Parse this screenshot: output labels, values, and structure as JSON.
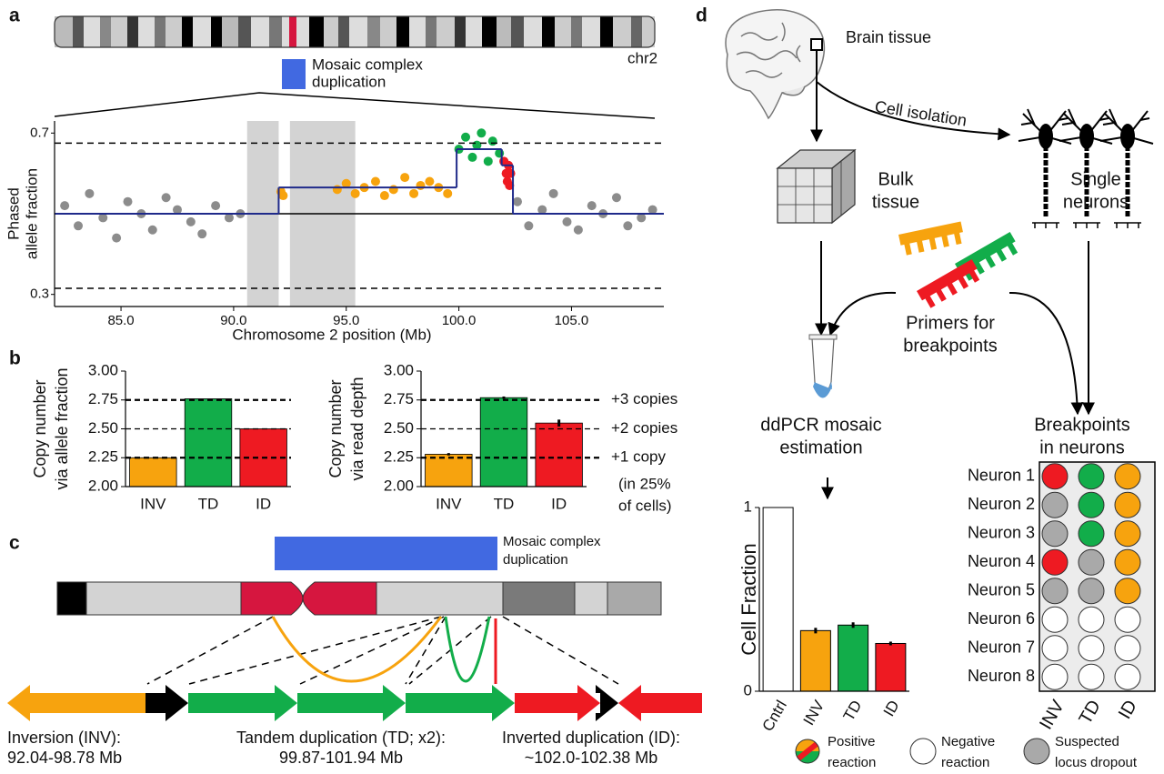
{
  "labels": {
    "a": "a",
    "b": "b",
    "c": "c",
    "d": "d"
  },
  "panel_a": {
    "chromosome": "chr2",
    "legend": [
      "Mosaic complex",
      "duplication"
    ]
  },
  "panel_c": {
    "legend": [
      "Mosaic complex",
      "duplication"
    ],
    "events": [
      {
        "name": "Inversion (INV):",
        "range": "92.04-98.78 Mb"
      },
      {
        "name": "Tandem duplication (TD; x2):",
        "range": "99.87-101.94 Mb"
      },
      {
        "name": "Inverted duplication (ID):",
        "range": "~102.0-102.38 Mb"
      }
    ]
  },
  "panel_d": {
    "brain": "Brain tissue",
    "isolation": "Cell isolation",
    "bulk": [
      "Bulk",
      "tissue"
    ],
    "single": [
      "Single",
      "neurons"
    ],
    "primers": [
      "Primers for",
      "breakpoints"
    ],
    "ddpcr": [
      "ddPCR mosaic",
      "estimation"
    ],
    "breakpoints": [
      "Breakpoints",
      "in neurons"
    ],
    "neurons": {
      "rows": [
        "Neuron 1",
        "Neuron 2",
        "Neuron 3",
        "Neuron 4",
        "Neuron 5",
        "Neuron 6",
        "Neuron 7",
        "Neuron 8"
      ],
      "columns": [
        "INV",
        "TD",
        "ID"
      ],
      "cells": [
        [
          "#ee1a22",
          "#12ad4a",
          "#f7a30e"
        ],
        [
          "#a9a9a9",
          "#12ad4a",
          "#f7a30e"
        ],
        [
          "#a9a9a9",
          "#12ad4a",
          "#f7a30e"
        ],
        [
          "#ee1a22",
          "#a9a9a9",
          "#f7a30e"
        ],
        [
          "#a9a9a9",
          "#a9a9a9",
          "#f7a30e"
        ],
        [
          "#ffffff",
          "#ffffff",
          "#ffffff"
        ],
        [
          "#ffffff",
          "#ffffff",
          "#ffffff"
        ],
        [
          "#ffffff",
          "#ffffff",
          "#ffffff"
        ]
      ]
    },
    "legend": [
      {
        "text": [
          "Positive",
          "reaction"
        ]
      },
      {
        "text": [
          "Negative",
          "reaction"
        ],
        "color": "#ffffff"
      },
      {
        "text": [
          "Suspected",
          "locus dropout"
        ],
        "color": "#a9a9a9"
      }
    ]
  },
  "chart_data": [
    {
      "type": "scatter",
      "ylabel": [
        "Phased",
        "allele fraction"
      ],
      "xlabel": "Chromosome 2 position (Mb)",
      "xlim": [
        82.05,
        109.1
      ],
      "ylim": [
        0.27,
        0.73
      ],
      "xticks": [
        {
          "value": 85,
          "label": "85.0"
        },
        {
          "value": 90,
          "label": "90.0"
        },
        {
          "value": 95,
          "label": "95.0"
        },
        {
          "value": 100,
          "label": "100.0"
        },
        {
          "value": 105,
          "label": "105.0"
        }
      ],
      "yticks": [
        0.3,
        0.7
      ],
      "shaded": [
        [
          90.6,
          92.0
        ],
        [
          92.5,
          95.4
        ]
      ],
      "hlines": [
        0.675,
        0.315
      ],
      "baseline": 0.5,
      "step": {
        "bins": [
          82.05,
          92.0,
          99.9,
          101.9,
          102.4,
          109.1
        ],
        "values": [
          0.5,
          0.565,
          0.66,
          0.62,
          0.5
        ],
        "color": "#1f2a8a"
      },
      "series": [
        {
          "color": "#8c8c8c",
          "x": [
            82.5,
            83.1,
            83.6,
            84.2,
            84.8,
            85.3,
            85.9,
            86.4,
            87.0,
            87.5,
            88.1,
            88.6,
            89.2,
            89.8,
            90.3,
            102.6,
            103.1,
            103.7,
            104.2,
            104.8,
            105.3,
            105.9,
            106.4,
            107.0,
            107.5,
            108.1,
            108.6
          ],
          "values": [
            0.52,
            0.47,
            0.55,
            0.49,
            0.44,
            0.53,
            0.5,
            0.46,
            0.54,
            0.51,
            0.48,
            0.45,
            0.52,
            0.49,
            0.5,
            0.53,
            0.47,
            0.51,
            0.55,
            0.48,
            0.46,
            0.52,
            0.5,
            0.54,
            0.47,
            0.49,
            0.51
          ]
        },
        {
          "color": "#f7a30e",
          "x": [
            92.1,
            92.2,
            94.6,
            95.0,
            95.4,
            95.8,
            96.3,
            96.7,
            97.1,
            97.6,
            98.0,
            98.3,
            98.7,
            99.1,
            99.5
          ],
          "values": [
            0.555,
            0.545,
            0.56,
            0.575,
            0.55,
            0.565,
            0.58,
            0.545,
            0.56,
            0.59,
            0.55,
            0.57,
            0.58,
            0.565,
            0.55
          ]
        },
        {
          "color": "#12ad4a",
          "x": [
            100.0,
            100.3,
            100.6,
            100.8,
            101.0,
            101.3,
            101.5,
            101.8
          ],
          "values": [
            0.66,
            0.69,
            0.64,
            0.67,
            0.7,
            0.63,
            0.68,
            0.65
          ]
        },
        {
          "color": "#ee1a22",
          "x": [
            102.0,
            102.1,
            102.15,
            102.2,
            102.25,
            102.3
          ],
          "values": [
            0.63,
            0.6,
            0.58,
            0.62,
            0.57,
            0.6
          ]
        }
      ]
    },
    {
      "type": "bar",
      "ylabel": [
        "Copy number",
        "via allele fraction"
      ],
      "categories": [
        "INV",
        "TD",
        "ID"
      ],
      "values": [
        2.25,
        2.76,
        2.5
      ],
      "colors": [
        "#f7a30e",
        "#12ad4a",
        "#ee1a22"
      ],
      "ylim": [
        2.0,
        3.0
      ],
      "yticks": [
        {
          "value": 2.0,
          "label": "2.00"
        },
        {
          "value": 2.25,
          "label": "2.25"
        },
        {
          "value": 2.5,
          "label": "2.50"
        },
        {
          "value": 2.75,
          "label": "2.75"
        },
        {
          "value": 3.0,
          "label": "3.00"
        }
      ],
      "hlines": [
        2.75,
        2.5,
        2.25
      ]
    },
    {
      "type": "bar",
      "ylabel": [
        "Copy number",
        "via read depth"
      ],
      "categories": [
        "INV",
        "TD",
        "ID"
      ],
      "values": [
        2.28,
        2.77,
        2.55
      ],
      "errors": [
        0.01,
        0.01,
        0.03
      ],
      "colors": [
        "#f7a30e",
        "#12ad4a",
        "#ee1a22"
      ],
      "ylim": [
        2.0,
        3.0
      ],
      "yticks": [
        {
          "value": 2.0,
          "label": "2.00"
        },
        {
          "value": 2.25,
          "label": "2.25"
        },
        {
          "value": 2.5,
          "label": "2.50"
        },
        {
          "value": 2.75,
          "label": "2.75"
        },
        {
          "value": 3.0,
          "label": "3.00"
        }
      ],
      "hlines": [
        2.75,
        2.5,
        2.25
      ],
      "annotations": [
        "+3 copies",
        "+2 copies",
        "+1 copy",
        "(in 25%",
        "of cells)"
      ]
    },
    {
      "type": "bar",
      "ylabel": [
        "Cell Fraction"
      ],
      "categories": [
        "Cntrl",
        "INV",
        "TD",
        "ID"
      ],
      "values": [
        1,
        0.33,
        0.36,
        0.26
      ],
      "errors": [
        0,
        0.015,
        0.015,
        0.01
      ],
      "colors": [
        "#ffffff",
        "#f7a30e",
        "#12ad4a",
        "#ee1a22"
      ],
      "ylim": [
        0,
        1
      ],
      "yticks": [
        0,
        1
      ]
    }
  ]
}
